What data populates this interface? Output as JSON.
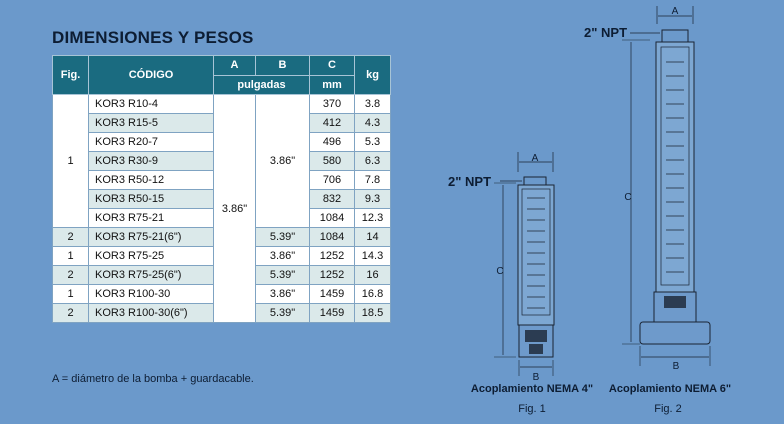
{
  "title": "DIMENSIONES Y PESOS",
  "table": {
    "headers": {
      "fig": "Fig.",
      "codigo": "CÓDIGO",
      "a": "A",
      "b": "B",
      "c": "C",
      "kg": "kg",
      "pulgadas": "pulgadas",
      "mm": "mm"
    },
    "col_a_merged": "3.86\"",
    "col_b_merged": "3.86\"",
    "fig_merged": "1",
    "rows": [
      {
        "fig": "",
        "code": "KOR3 R10-4",
        "b": "",
        "c": "370",
        "kg": "3.8"
      },
      {
        "fig": "",
        "code": "KOR3 R15-5",
        "b": "",
        "c": "412",
        "kg": "4.3"
      },
      {
        "fig": "",
        "code": "KOR3 R20-7",
        "b": "",
        "c": "496",
        "kg": "5.3"
      },
      {
        "fig": "",
        "code": "KOR3 R30-9",
        "b": "",
        "c": "580",
        "kg": "6.3"
      },
      {
        "fig": "",
        "code": "KOR3 R50-12",
        "b": "",
        "c": "706",
        "kg": "7.8"
      },
      {
        "fig": "",
        "code": "KOR3 R50-15",
        "b": "",
        "c": "832",
        "kg": "9.3"
      },
      {
        "fig": "",
        "code": "KOR3 R75-21",
        "b": "",
        "c": "1084",
        "kg": "12.3"
      },
      {
        "fig": "2",
        "code": "KOR3 R75-21(6\")",
        "b": "5.39\"",
        "c": "1084",
        "kg": "14"
      },
      {
        "fig": "1",
        "code": "KOR3 R75-25",
        "b": "3.86\"",
        "c": "1252",
        "kg": "14.3"
      },
      {
        "fig": "2",
        "code": "KOR3 R75-25(6\")",
        "b": "5.39\"",
        "c": "1252",
        "kg": "16"
      },
      {
        "fig": "1",
        "code": "KOR3 R100-30",
        "b": "3.86\"",
        "c": "1459",
        "kg": "16.8"
      },
      {
        "fig": "2",
        "code": "KOR3 R100-30(6\")",
        "b": "5.39\"",
        "c": "1459",
        "kg": "18.5"
      }
    ]
  },
  "note": "A = diámetro de la bomba + guardacable.",
  "figures": {
    "fig1": {
      "npt": "2\" NPT",
      "a": "A",
      "b": "B",
      "c": "C",
      "caption": "Acoplamiento NEMA 4\"",
      "label": "Fig. 1"
    },
    "fig2": {
      "npt": "2\" NPT",
      "a": "A",
      "b": "B",
      "c": "C",
      "caption": "Acoplamiento NEMA 6\"",
      "label": "Fig. 2"
    }
  },
  "colors": {
    "header": "#1a6b80",
    "stripe": "#dbe9ea",
    "background": "#6b99cb"
  }
}
